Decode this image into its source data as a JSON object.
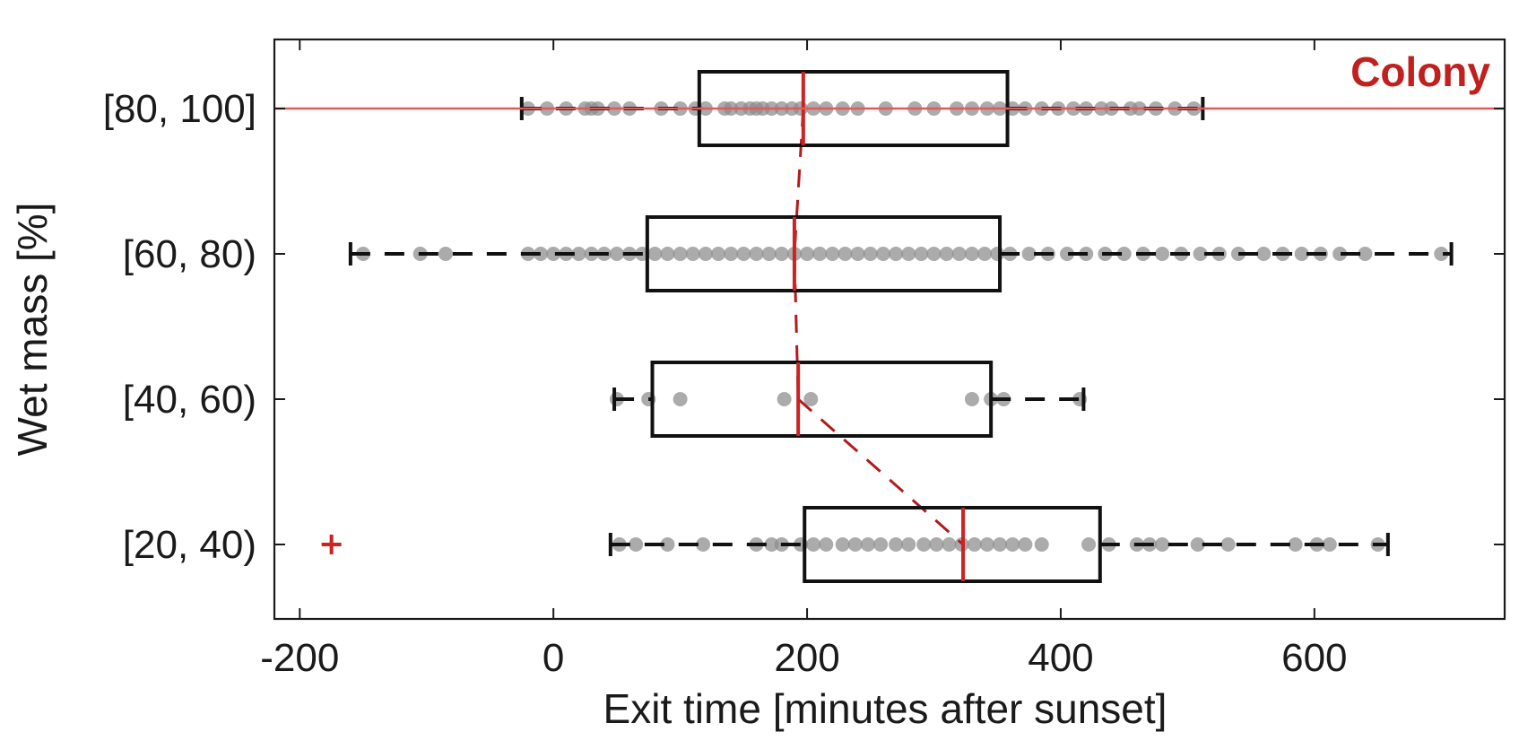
{
  "chart_data": {
    "type": "boxplot",
    "orientation": "horizontal",
    "xlabel": "Exit time [minutes after sunset]",
    "ylabel": "Wet mass [%]",
    "xlim": [
      -220,
      750
    ],
    "xticks": [
      -200,
      0,
      200,
      400,
      600
    ],
    "xtick_labels": [
      "-200",
      "0",
      "200",
      "400",
      "600"
    ],
    "grid": false,
    "categories": [
      "[80, 100]",
      "[60, 80)",
      "[40, 60)",
      "[20, 40)"
    ],
    "boxes": [
      {
        "category": "[80, 100]",
        "whisker_low": -25,
        "q1": 115,
        "median": 197,
        "q3": 358,
        "whisker_high": 512,
        "outliers": [],
        "points": [
          -20,
          -5,
          10,
          25,
          30,
          35,
          48,
          60,
          85,
          100,
          112,
          120,
          135,
          140,
          148,
          155,
          160,
          165,
          172,
          180,
          188,
          195,
          205,
          215,
          228,
          240,
          262,
          285,
          300,
          318,
          330,
          342,
          352,
          362,
          372,
          385,
          398,
          410,
          420,
          432,
          440,
          455,
          462,
          475,
          490,
          505
        ]
      },
      {
        "category": "[60, 80)",
        "whisker_low": -160,
        "q1": 74,
        "median": 190,
        "q3": 352,
        "whisker_high": 708,
        "outliers": [],
        "points": [
          -150,
          -105,
          -85,
          -20,
          -10,
          0,
          10,
          20,
          30,
          40,
          50,
          60,
          70,
          80,
          90,
          100,
          110,
          120,
          130,
          140,
          150,
          160,
          170,
          180,
          190,
          200,
          210,
          220,
          230,
          240,
          250,
          260,
          270,
          280,
          290,
          300,
          310,
          320,
          330,
          340,
          350,
          360,
          375,
          390,
          405,
          420,
          435,
          450,
          465,
          480,
          495,
          510,
          525,
          540,
          560,
          575,
          590,
          605,
          620,
          640,
          700
        ]
      },
      {
        "category": "[40, 60)",
        "whisker_low": 48,
        "q1": 78,
        "median": 193,
        "q3": 345,
        "whisker_high": 418,
        "outliers": [],
        "points": [
          50,
          75,
          100,
          182,
          203,
          330,
          345,
          355,
          415
        ]
      },
      {
        "category": "[20, 40)",
        "whisker_low": 45,
        "q1": 198,
        "median": 323,
        "q3": 431,
        "whisker_high": 658,
        "outliers": [
          -175
        ],
        "points": [
          52,
          65,
          90,
          118,
          160,
          172,
          180,
          195,
          205,
          215,
          228,
          238,
          248,
          258,
          270,
          280,
          292,
          302,
          312,
          322,
          332,
          342,
          352,
          362,
          372,
          385,
          422,
          438,
          460,
          470,
          480,
          508,
          532,
          585,
          602,
          612,
          650
        ]
      }
    ],
    "median_trend": [
      {
        "category": "[80, 100]",
        "value": 197
      },
      {
        "category": "[60, 80)",
        "value": 190
      },
      {
        "category": "[40, 60)",
        "value": 193
      },
      {
        "category": "[20, 40)",
        "value": 323
      }
    ],
    "reference_line": {
      "label": "Colony",
      "category": "[80, 100]"
    },
    "colors": {
      "axis": "#1a1a1a",
      "box": "#111111",
      "median": "#cc2222",
      "trend": "#b31a1a",
      "points": "#8a8a8a",
      "outlier": "#cc2222",
      "reference": "#e05a5a",
      "colony_label": "#c0201e"
    }
  }
}
